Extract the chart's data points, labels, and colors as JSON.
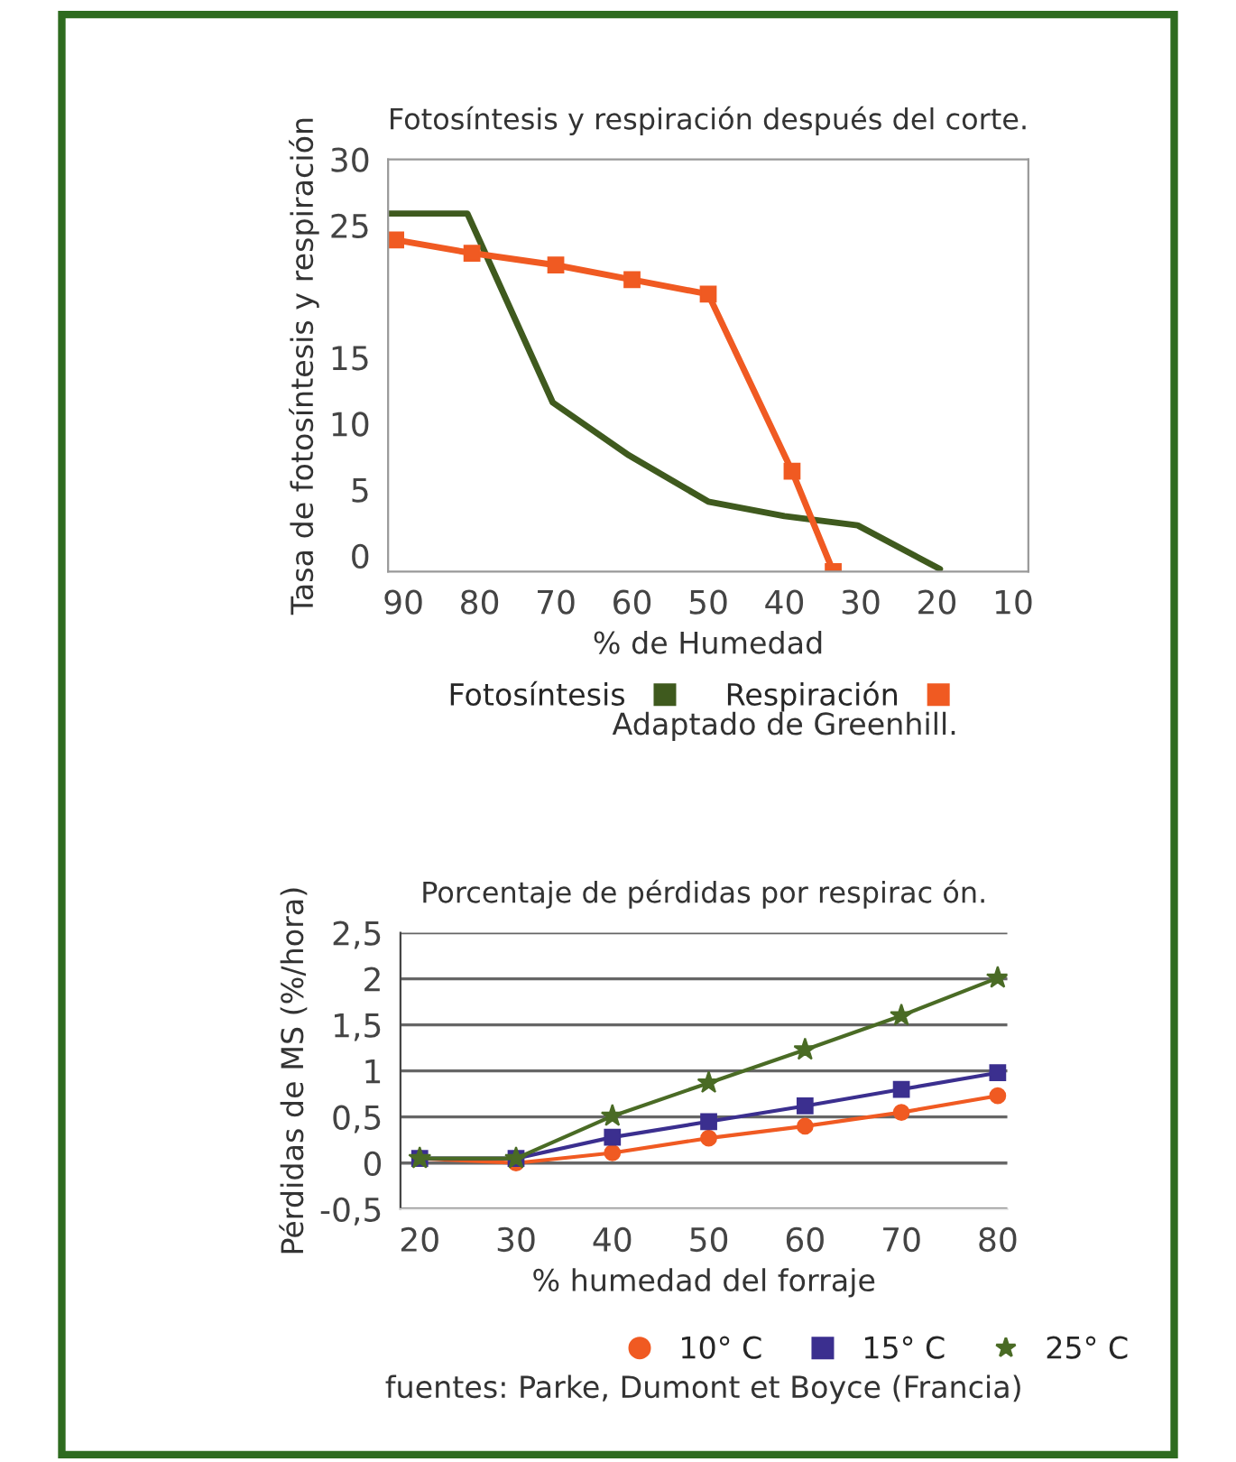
{
  "chart_data": [
    {
      "type": "line",
      "title": "Fotosíntesis y respiración después del corte.",
      "xlabel": "% de Humedad",
      "ylabel": "Tasa de fotosíntesis y respiración",
      "xlim": [
        92,
        8
      ],
      "xticks": [
        90,
        80,
        70,
        60,
        50,
        40,
        30,
        20,
        10
      ],
      "ylim": [
        -1.2,
        30
      ],
      "yticks": [
        0,
        5,
        10,
        15,
        25,
        30
      ],
      "grid": false,
      "legend": "bottom",
      "line_style": "solid",
      "series": [
        {
          "name": "Fotosíntesis",
          "color": "#3f5a1e",
          "marker": "none",
          "x": [
            92,
            81.6,
            70.4,
            60.4,
            50,
            40,
            30.4,
            19.6
          ],
          "values": [
            25.9,
            25.9,
            11.6,
            7.6,
            4.1,
            3.0,
            2.3,
            -1.0
          ]
        },
        {
          "name": "Respiración",
          "color": "#f05a22",
          "marker": "square",
          "x": [
            91,
            81,
            70,
            60,
            50,
            39,
            33.6
          ],
          "values": [
            23.9,
            22.9,
            22.0,
            20.9,
            19.8,
            6.4,
            -1.2
          ]
        }
      ],
      "annotations": [
        "Adaptado de Greenhill."
      ]
    },
    {
      "type": "line",
      "title": "Porcentaje de pérdidas por respirac ón.",
      "xlabel": "% humedad del forraje",
      "ylabel": "Pérdidas de MS (%/hora)",
      "xlim": [
        18,
        81
      ],
      "xticks": [
        20,
        30,
        40,
        50,
        60,
        70,
        80
      ],
      "ylim": [
        -0.5,
        2.5
      ],
      "yticks": [
        {
          "value": -0.5,
          "label": "-0,5"
        },
        0,
        {
          "value": 0.5,
          "label": "0,5"
        },
        1,
        {
          "value": 1.5,
          "label": "1,5"
        },
        2,
        {
          "value": 2.5,
          "label": "2,5"
        }
      ],
      "grid": "y",
      "legend": "bottom",
      "line_style": "solid",
      "series": [
        {
          "name": "10° C",
          "color": "#f05a22",
          "marker": "circle",
          "x": [
            20,
            30,
            40,
            50,
            60,
            70,
            80
          ],
          "values": [
            0.05,
            0,
            0.11,
            0.27,
            0.4,
            0.55,
            0.73
          ]
        },
        {
          "name": "15° C",
          "color": "#3b2f8f",
          "marker": "square",
          "x": [
            20,
            30,
            40,
            50,
            60,
            70,
            80
          ],
          "values": [
            0.05,
            0.05,
            0.28,
            0.45,
            0.62,
            0.8,
            0.98
          ]
        },
        {
          "name": "25° C",
          "color": "#4a6b25",
          "marker": "star",
          "x": [
            20,
            30,
            40,
            50,
            60,
            70,
            80
          ],
          "values": [
            0.05,
            0.05,
            0.51,
            0.87,
            1.23,
            1.6,
            2.01
          ]
        }
      ],
      "annotations": [
        "fuentes: Parke, Dumont et Boyce (Francia)"
      ]
    }
  ]
}
